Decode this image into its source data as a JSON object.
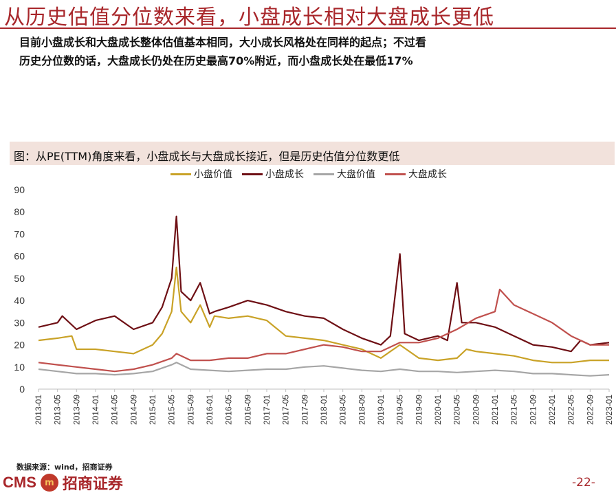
{
  "header": {
    "title": "从历史估值分位数来看，小盘成长相对大盘成长更低",
    "summary_line1": "目前小盘成长和大盘成长整体估值基本相同，大小成长风格处在同样的起点；不过看",
    "summary_line2": "历史分位数的话，大盘成长仍处在历史最高70%附近，而小盘成长处在最低17%"
  },
  "footer": {
    "source": "数据来源：wind，招商证券",
    "logo_text": "CMS",
    "logo_mark": "m",
    "logo_cn": "招商证券",
    "page_number": "-22-"
  },
  "colors": {
    "brand": "#a8262a",
    "header_bg": "#f2e2dc"
  },
  "chart_data": {
    "type": "line",
    "title": "图：从PE(TTM)角度来看，小盘成长与大盘成长接近，但是历史估值分位数更低",
    "xlabel": "",
    "ylabel": "",
    "ylim": [
      0,
      90
    ],
    "yticks": [
      0,
      10,
      20,
      30,
      40,
      50,
      60,
      70,
      80,
      90
    ],
    "grid": false,
    "legend_position": "top-center",
    "xticks": [
      "2013-01",
      "2013-05",
      "2013-09",
      "2014-01",
      "2014-05",
      "2014-09",
      "2015-01",
      "2015-05",
      "2015-09",
      "2016-01",
      "2016-05",
      "2016-09",
      "2017-01",
      "2017-05",
      "2017-09",
      "2018-01",
      "2018-05",
      "2018-09",
      "2019-01",
      "2019-05",
      "2019-09",
      "2020-01",
      "2020-05",
      "2020-09",
      "2021-01",
      "2021-05",
      "2021-09",
      "2022-01",
      "2022-05",
      "2022-09",
      "2023-01"
    ],
    "series": [
      {
        "name": "小盘价值",
        "color": "#c9a227",
        "points": [
          [
            "2013-01",
            22
          ],
          [
            "2013-05",
            23
          ],
          [
            "2013-08",
            24
          ],
          [
            "2013-09",
            18
          ],
          [
            "2014-01",
            18
          ],
          [
            "2014-05",
            17
          ],
          [
            "2014-09",
            16
          ],
          [
            "2015-01",
            20
          ],
          [
            "2015-03",
            25
          ],
          [
            "2015-05",
            35
          ],
          [
            "2015-06",
            55
          ],
          [
            "2015-07",
            35
          ],
          [
            "2015-09",
            30
          ],
          [
            "2015-11",
            38
          ],
          [
            "2016-01",
            28
          ],
          [
            "2016-02",
            33
          ],
          [
            "2016-05",
            32
          ],
          [
            "2016-09",
            33
          ],
          [
            "2017-01",
            31
          ],
          [
            "2017-05",
            24
          ],
          [
            "2017-09",
            23
          ],
          [
            "2018-01",
            22
          ],
          [
            "2018-05",
            20
          ],
          [
            "2018-09",
            18
          ],
          [
            "2019-01",
            14
          ],
          [
            "2019-03",
            17
          ],
          [
            "2019-05",
            20
          ],
          [
            "2019-09",
            14
          ],
          [
            "2020-01",
            13
          ],
          [
            "2020-05",
            14
          ],
          [
            "2020-07",
            18
          ],
          [
            "2020-09",
            17
          ],
          [
            "2021-01",
            16
          ],
          [
            "2021-05",
            15
          ],
          [
            "2021-09",
            13
          ],
          [
            "2022-01",
            12
          ],
          [
            "2022-05",
            12
          ],
          [
            "2022-09",
            13
          ],
          [
            "2023-01",
            13
          ]
        ]
      },
      {
        "name": "小盘成长",
        "color": "#6e0f14",
        "points": [
          [
            "2013-01",
            28
          ],
          [
            "2013-05",
            30
          ],
          [
            "2013-06",
            33
          ],
          [
            "2013-09",
            27
          ],
          [
            "2014-01",
            31
          ],
          [
            "2014-05",
            33
          ],
          [
            "2014-09",
            27
          ],
          [
            "2015-01",
            30
          ],
          [
            "2015-03",
            37
          ],
          [
            "2015-05",
            50
          ],
          [
            "2015-06",
            78
          ],
          [
            "2015-07",
            44
          ],
          [
            "2015-09",
            40
          ],
          [
            "2015-11",
            48
          ],
          [
            "2016-01",
            34
          ],
          [
            "2016-02",
            35
          ],
          [
            "2016-05",
            37
          ],
          [
            "2016-09",
            40
          ],
          [
            "2017-01",
            38
          ],
          [
            "2017-05",
            35
          ],
          [
            "2017-09",
            33
          ],
          [
            "2018-01",
            32
          ],
          [
            "2018-05",
            27
          ],
          [
            "2018-09",
            23
          ],
          [
            "2019-01",
            20
          ],
          [
            "2019-03",
            24
          ],
          [
            "2019-05",
            61
          ],
          [
            "2019-06",
            25
          ],
          [
            "2019-09",
            22
          ],
          [
            "2020-01",
            24
          ],
          [
            "2020-03",
            22
          ],
          [
            "2020-05",
            48
          ],
          [
            "2020-06",
            30
          ],
          [
            "2020-09",
            30
          ],
          [
            "2021-01",
            28
          ],
          [
            "2021-05",
            24
          ],
          [
            "2021-09",
            20
          ],
          [
            "2022-01",
            19
          ],
          [
            "2022-05",
            17
          ],
          [
            "2022-07",
            22
          ],
          [
            "2022-09",
            20
          ],
          [
            "2023-01",
            21
          ]
        ]
      },
      {
        "name": "大盘价值",
        "color": "#a6a6a6",
        "points": [
          [
            "2013-01",
            9
          ],
          [
            "2013-05",
            8
          ],
          [
            "2013-09",
            7
          ],
          [
            "2014-01",
            7
          ],
          [
            "2014-05",
            6.5
          ],
          [
            "2014-09",
            7
          ],
          [
            "2015-01",
            8
          ],
          [
            "2015-05",
            11
          ],
          [
            "2015-06",
            12
          ],
          [
            "2015-09",
            9
          ],
          [
            "2016-01",
            8.5
          ],
          [
            "2016-05",
            8
          ],
          [
            "2016-09",
            8.5
          ],
          [
            "2017-01",
            9
          ],
          [
            "2017-05",
            9
          ],
          [
            "2017-09",
            10
          ],
          [
            "2018-01",
            10.5
          ],
          [
            "2018-05",
            9.5
          ],
          [
            "2018-09",
            8.5
          ],
          [
            "2019-01",
            8
          ],
          [
            "2019-05",
            9
          ],
          [
            "2019-09",
            8
          ],
          [
            "2020-01",
            8
          ],
          [
            "2020-05",
            7.5
          ],
          [
            "2020-09",
            8
          ],
          [
            "2021-01",
            8.5
          ],
          [
            "2021-05",
            8
          ],
          [
            "2021-09",
            7
          ],
          [
            "2022-01",
            7
          ],
          [
            "2022-05",
            6.5
          ],
          [
            "2022-09",
            6
          ],
          [
            "2023-01",
            6.5
          ]
        ]
      },
      {
        "name": "大盘成长",
        "color": "#c0504d",
        "points": [
          [
            "2013-01",
            12
          ],
          [
            "2013-05",
            11
          ],
          [
            "2013-09",
            10
          ],
          [
            "2014-01",
            9
          ],
          [
            "2014-05",
            8
          ],
          [
            "2014-09",
            9
          ],
          [
            "2015-01",
            11
          ],
          [
            "2015-05",
            14
          ],
          [
            "2015-06",
            16
          ],
          [
            "2015-09",
            13
          ],
          [
            "2016-01",
            13
          ],
          [
            "2016-05",
            14
          ],
          [
            "2016-09",
            14
          ],
          [
            "2017-01",
            16
          ],
          [
            "2017-05",
            16
          ],
          [
            "2017-09",
            18
          ],
          [
            "2018-01",
            20
          ],
          [
            "2018-05",
            19
          ],
          [
            "2018-09",
            17
          ],
          [
            "2019-01",
            17
          ],
          [
            "2019-05",
            21
          ],
          [
            "2019-09",
            21
          ],
          [
            "2020-01",
            23
          ],
          [
            "2020-05",
            27
          ],
          [
            "2020-09",
            32
          ],
          [
            "2021-01",
            35
          ],
          [
            "2021-02",
            45
          ],
          [
            "2021-05",
            38
          ],
          [
            "2021-09",
            34
          ],
          [
            "2022-01",
            30
          ],
          [
            "2022-05",
            24
          ],
          [
            "2022-09",
            20
          ],
          [
            "2023-01",
            20
          ]
        ]
      }
    ]
  }
}
